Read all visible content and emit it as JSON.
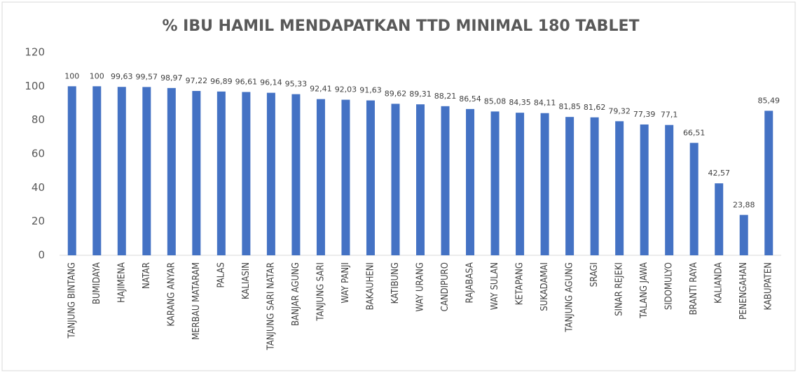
{
  "chart_data": {
    "type": "bar",
    "title": "% IBU HAMIL MENDAPATKAN TTD MINIMAL 180 TABLET",
    "categories": [
      "TANJUNG BINTANG",
      "BUMIDAYA",
      "HAJIMENA",
      "NATAR",
      "KARANG ANYAR",
      "MERBAU MATARAM",
      "PALAS",
      "KALIASIN",
      "TANJUNG SARI NATAR",
      "BANJAR AGUNG",
      "TANJUNG SARI",
      "WAY PANJI",
      "BAKAUHENI",
      "KATIBUNG",
      "WAY URANG",
      "CANDIPURO",
      "RAJABASA",
      "WAY SULAN",
      "KETAPANG",
      "SUKADAMAI",
      "TANJUNG AGUNG",
      "SRAGI",
      "SINAR REJEKI",
      "TALANG JAWA",
      "SIDOMULYO",
      "BRANTI RAYA",
      "KALIANDA",
      "PENENGAHAN",
      "KABUPATEN"
    ],
    "values": [
      100,
      100,
      99.63,
      99.57,
      98.97,
      97.22,
      96.89,
      96.61,
      96.14,
      95.33,
      92.41,
      92.03,
      91.63,
      89.62,
      89.31,
      88.21,
      86.54,
      85.08,
      84.35,
      84.11,
      81.85,
      81.62,
      79.32,
      77.39,
      77.1,
      66.51,
      42.57,
      23.88,
      85.49
    ],
    "value_labels": [
      "100",
      "100",
      "99,63",
      "99,57",
      "98,97",
      "97,22",
      "96,89",
      "96,61",
      "96,14",
      "95,33",
      "92,41",
      "92,03",
      "91,63",
      "89,62",
      "89,31",
      "88,21",
      "86,54",
      "85,08",
      "84,35",
      "84,11",
      "81,85",
      "81,62",
      "79,32",
      "77,39",
      "77,1",
      "66,51",
      "42,57",
      "23,88",
      "85,49"
    ],
    "color": "#4472c4",
    "ylim": [
      0,
      120
    ],
    "yticks": [
      0,
      20,
      40,
      60,
      80,
      100,
      120
    ],
    "grid": false
  }
}
